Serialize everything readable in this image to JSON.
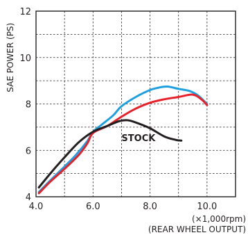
{
  "chart_data": {
    "type": "line",
    "ylabel": "SAE POWER (PS)",
    "xunit_label": "(×1,000rpm)",
    "xnote_label": "(REAR WHEEL OUTPUT)",
    "xlim": [
      4.0,
      11.0
    ],
    "ylim": [
      4,
      12
    ],
    "xticks": [
      4.0,
      6.0,
      8.0,
      10.0
    ],
    "xtick_labels": [
      "4.0",
      "6.0",
      "8.0",
      "10.0"
    ],
    "yticks": [
      4,
      6,
      8,
      10,
      12
    ],
    "ytick_labels": [
      "4",
      "6",
      "8",
      "10",
      "12"
    ],
    "grid": true,
    "series": [
      {
        "id": "blue",
        "color": "#1ea0e0",
        "x": [
          4.1,
          4.5,
          5.0,
          5.4,
          5.8,
          6.0,
          6.3,
          6.7,
          7.0,
          7.5,
          8.0,
          8.3,
          8.6,
          9.0,
          9.4,
          9.7,
          10.0
        ],
        "y": [
          4.2,
          4.7,
          5.3,
          5.8,
          6.4,
          6.8,
          7.1,
          7.5,
          7.9,
          8.3,
          8.6,
          8.7,
          8.75,
          8.65,
          8.55,
          8.35,
          8.0
        ]
      },
      {
        "id": "red",
        "color": "#e8202a",
        "x": [
          4.1,
          4.5,
          5.0,
          5.5,
          5.8,
          6.0,
          6.5,
          7.0,
          7.5,
          8.0,
          8.5,
          9.0,
          9.5,
          9.8,
          10.0
        ],
        "y": [
          4.15,
          4.65,
          5.2,
          5.8,
          6.3,
          6.75,
          7.05,
          7.45,
          7.8,
          8.05,
          8.2,
          8.3,
          8.4,
          8.2,
          7.95
        ]
      },
      {
        "id": "stock",
        "name": "STOCK",
        "color": "#231f20",
        "x": [
          4.1,
          4.5,
          5.0,
          5.5,
          6.0,
          6.5,
          6.9,
          7.2,
          7.5,
          8.0,
          8.5,
          8.9,
          9.1
        ],
        "y": [
          4.4,
          5.0,
          5.7,
          6.35,
          6.8,
          7.05,
          7.25,
          7.3,
          7.2,
          6.95,
          6.6,
          6.45,
          6.42
        ]
      }
    ],
    "annotations": [
      {
        "text": "STOCK",
        "x": 7.0,
        "y": 6.4
      }
    ]
  }
}
